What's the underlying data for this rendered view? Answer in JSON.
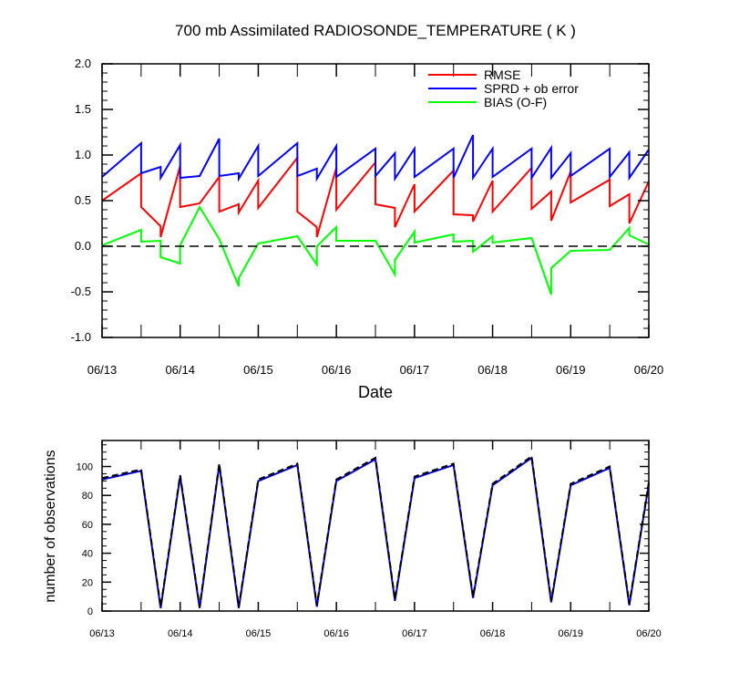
{
  "chart_data": [
    {
      "type": "line",
      "title": "700 mb Assimilated RADIOSONDE_TEMPERATURE ( K )",
      "xlabel": "Date",
      "ylabel": "",
      "ylim": [
        -1.0,
        2.0
      ],
      "xlim": [
        0,
        7
      ],
      "y_ticks": [
        -1.0,
        -0.5,
        0.0,
        0.5,
        1.0,
        1.5,
        2.0
      ],
      "y_tick_labels": [
        "-1.0",
        "-0.5",
        "0.0",
        "0.5",
        "1.0",
        "1.5",
        "2.0"
      ],
      "x_ticks": [
        0,
        1,
        2,
        3,
        4,
        5,
        6,
        7
      ],
      "x_tick_labels": [
        "06/13",
        "06/14",
        "06/15",
        "06/16",
        "06/17",
        "06/18",
        "06/19",
        "06/20"
      ],
      "legend": [
        "RMSE",
        "SPRD + ob error",
        "BIAS (O-F)"
      ],
      "legend_position": "top-right",
      "zero_line": "dashed",
      "series": [
        {
          "name": "RMSE",
          "color": "#ff0000",
          "points": [
            [
              0,
              0.5
            ],
            [
              0.5,
              0.8
            ],
            [
              0.5,
              0.43
            ],
            [
              0.75,
              0.22
            ],
            [
              0.75,
              0.1
            ],
            [
              1.0,
              0.88
            ],
            [
              1.0,
              0.43
            ],
            [
              1.25,
              0.47
            ],
            [
              1.5,
              0.76
            ],
            [
              1.5,
              0.38
            ],
            [
              1.75,
              0.46
            ],
            [
              1.75,
              0.37
            ],
            [
              2.0,
              0.72
            ],
            [
              2.0,
              0.42
            ],
            [
              2.5,
              0.97
            ],
            [
              2.5,
              0.38
            ],
            [
              2.75,
              0.21
            ],
            [
              2.75,
              0.1
            ],
            [
              3.0,
              0.86
            ],
            [
              3.0,
              0.4
            ],
            [
              3.5,
              0.92
            ],
            [
              3.5,
              0.46
            ],
            [
              3.75,
              0.42
            ],
            [
              3.75,
              0.21
            ],
            [
              4.0,
              0.68
            ],
            [
              4.0,
              0.38
            ],
            [
              4.5,
              0.83
            ],
            [
              4.5,
              0.35
            ],
            [
              4.75,
              0.34
            ],
            [
              4.75,
              0.27
            ],
            [
              5.0,
              0.72
            ],
            [
              5.0,
              0.38
            ],
            [
              5.5,
              0.86
            ],
            [
              5.5,
              0.41
            ],
            [
              5.75,
              0.6
            ],
            [
              5.75,
              0.28
            ],
            [
              6.0,
              0.82
            ],
            [
              6.0,
              0.48
            ],
            [
              6.5,
              0.73
            ],
            [
              6.5,
              0.44
            ],
            [
              6.75,
              0.57
            ],
            [
              6.75,
              0.25
            ],
            [
              7.0,
              0.71
            ]
          ]
        },
        {
          "name": "SPRD + ob error",
          "color": "#0000ff",
          "points": [
            [
              0,
              0.76
            ],
            [
              0.5,
              1.13
            ],
            [
              0.5,
              0.8
            ],
            [
              0.75,
              0.87
            ],
            [
              0.75,
              0.75
            ],
            [
              1.0,
              1.11
            ],
            [
              1.0,
              0.75
            ],
            [
              1.25,
              0.77
            ],
            [
              1.5,
              1.18
            ],
            [
              1.5,
              0.77
            ],
            [
              1.75,
              0.8
            ],
            [
              1.75,
              0.74
            ],
            [
              2.0,
              1.1
            ],
            [
              2.0,
              0.77
            ],
            [
              2.5,
              1.13
            ],
            [
              2.5,
              0.77
            ],
            [
              2.75,
              0.85
            ],
            [
              2.75,
              0.74
            ],
            [
              3.0,
              1.1
            ],
            [
              3.0,
              0.76
            ],
            [
              3.5,
              1.07
            ],
            [
              3.5,
              0.77
            ],
            [
              3.75,
              1.02
            ],
            [
              3.75,
              0.74
            ],
            [
              4.0,
              1.07
            ],
            [
              4.0,
              0.76
            ],
            [
              4.5,
              1.07
            ],
            [
              4.5,
              0.75
            ],
            [
              4.75,
              1.22
            ],
            [
              4.75,
              0.75
            ],
            [
              5.0,
              1.07
            ],
            [
              5.0,
              0.76
            ],
            [
              5.5,
              1.07
            ],
            [
              5.5,
              0.75
            ],
            [
              5.75,
              1.08
            ],
            [
              5.75,
              0.75
            ],
            [
              6.0,
              1.02
            ],
            [
              6.0,
              0.77
            ],
            [
              6.5,
              1.07
            ],
            [
              6.5,
              0.76
            ],
            [
              6.75,
              1.03
            ],
            [
              6.75,
              0.75
            ],
            [
              7.0,
              1.06
            ]
          ]
        },
        {
          "name": "BIAS (O-F)",
          "color": "#00ff00",
          "points": [
            [
              0,
              0.01
            ],
            [
              0.5,
              0.18
            ],
            [
              0.5,
              0.05
            ],
            [
              0.75,
              0.06
            ],
            [
              0.75,
              -0.12
            ],
            [
              1.0,
              -0.19
            ],
            [
              1.0,
              0.01
            ],
            [
              1.25,
              0.43
            ],
            [
              1.5,
              0.08
            ],
            [
              1.75,
              -0.44
            ],
            [
              1.75,
              -0.35
            ],
            [
              2.0,
              0.03
            ],
            [
              2.5,
              0.11
            ],
            [
              2.75,
              -0.2
            ],
            [
              2.75,
              0.0
            ],
            [
              3.0,
              0.21
            ],
            [
              3.0,
              0.06
            ],
            [
              3.5,
              0.06
            ],
            [
              3.75,
              -0.31
            ],
            [
              3.75,
              -0.15
            ],
            [
              4.0,
              0.16
            ],
            [
              4.0,
              0.04
            ],
            [
              4.5,
              0.13
            ],
            [
              4.5,
              0.05
            ],
            [
              4.75,
              0.06
            ],
            [
              4.75,
              -0.06
            ],
            [
              5.0,
              0.11
            ],
            [
              5.0,
              0.04
            ],
            [
              5.5,
              0.09
            ],
            [
              5.75,
              -0.53
            ],
            [
              5.75,
              -0.24
            ],
            [
              6.0,
              -0.05
            ],
            [
              6.5,
              -0.04
            ],
            [
              6.75,
              0.2
            ],
            [
              6.75,
              0.12
            ],
            [
              7.0,
              0.02
            ]
          ]
        }
      ]
    },
    {
      "type": "line",
      "title": "",
      "xlabel": "",
      "ylabel": "number of observations",
      "ylim": [
        0,
        118
      ],
      "xlim": [
        0,
        7
      ],
      "y_ticks": [
        0,
        20,
        40,
        60,
        80,
        100
      ],
      "y_tick_labels": [
        "0",
        "20",
        "40",
        "60",
        "80",
        "100"
      ],
      "x_ticks": [
        0,
        1,
        2,
        3,
        4,
        5,
        6,
        7
      ],
      "x_tick_labels": [
        "06/13",
        "06/14",
        "06/15",
        "06/16",
        "06/17",
        "06/18",
        "06/19",
        "06/20"
      ],
      "series": [
        {
          "name": "number of observations (blue)",
          "color": "#0000cc",
          "style": "solid",
          "points": [
            [
              0,
              91
            ],
            [
              0.5,
              97
            ],
            [
              0.75,
              2
            ],
            [
              1.0,
              93
            ],
            [
              1.25,
              2
            ],
            [
              1.5,
              101
            ],
            [
              1.75,
              2
            ],
            [
              2.0,
              90
            ],
            [
              2.5,
              101
            ],
            [
              2.75,
              3
            ],
            [
              3.0,
              90
            ],
            [
              3.5,
              105
            ],
            [
              3.75,
              7
            ],
            [
              4.0,
              92
            ],
            [
              4.5,
              101
            ],
            [
              4.75,
              9
            ],
            [
              5.0,
              87
            ],
            [
              5.5,
              106
            ],
            [
              5.75,
              6
            ],
            [
              6.0,
              87
            ],
            [
              6.5,
              99
            ],
            [
              6.75,
              4
            ],
            [
              7.0,
              88
            ]
          ]
        },
        {
          "name": "number of observations (black dashed)",
          "color": "#000000",
          "style": "dashed",
          "points": [
            [
              0,
              92
            ],
            [
              0.5,
              98
            ],
            [
              0.75,
              3
            ],
            [
              1.0,
              94
            ],
            [
              1.25,
              3
            ],
            [
              1.5,
              102
            ],
            [
              1.75,
              3
            ],
            [
              2.0,
              91
            ],
            [
              2.5,
              102
            ],
            [
              2.75,
              4
            ],
            [
              3.0,
              91
            ],
            [
              3.5,
              106
            ],
            [
              3.75,
              8
            ],
            [
              4.0,
              93
            ],
            [
              4.5,
              102
            ],
            [
              4.75,
              10
            ],
            [
              5.0,
              88
            ],
            [
              5.5,
              107
            ],
            [
              5.75,
              7
            ],
            [
              6.0,
              88
            ],
            [
              6.5,
              100
            ],
            [
              6.75,
              5
            ],
            [
              7.0,
              89
            ]
          ]
        }
      ]
    }
  ]
}
